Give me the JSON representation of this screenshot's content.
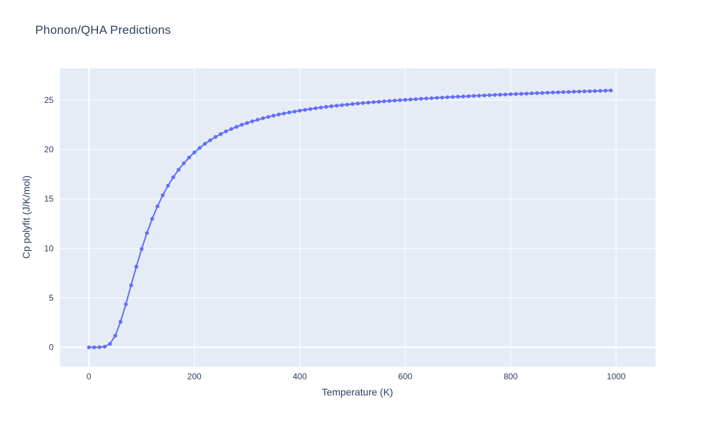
{
  "chart_data": {
    "type": "line",
    "mode": "lines+markers",
    "title": "Phonon/QHA Predictions",
    "xlabel": "Temperature (K)",
    "ylabel": "Cp polyfit (J/K/mol)",
    "series_name": "Cp polyfit",
    "x": [
      0,
      10,
      20,
      30,
      40,
      50,
      60,
      70,
      80,
      90,
      100,
      110,
      120,
      130,
      140,
      150,
      160,
      170,
      180,
      190,
      200,
      210,
      220,
      230,
      240,
      250,
      260,
      270,
      280,
      290,
      300,
      310,
      320,
      330,
      340,
      350,
      360,
      370,
      380,
      390,
      400,
      410,
      420,
      430,
      440,
      450,
      460,
      470,
      480,
      490,
      500,
      510,
      520,
      530,
      540,
      550,
      560,
      570,
      580,
      590,
      600,
      610,
      620,
      630,
      640,
      650,
      660,
      670,
      680,
      690,
      700,
      710,
      720,
      730,
      740,
      750,
      760,
      770,
      780,
      790,
      800,
      810,
      820,
      830,
      840,
      850,
      860,
      870,
      880,
      890,
      900,
      910,
      920,
      930,
      940,
      950,
      960,
      970,
      980,
      990
    ],
    "y": [
      0,
      0,
      0.01,
      0.07,
      0.35,
      1.18,
      2.58,
      4.35,
      6.27,
      8.16,
      9.94,
      11.55,
      12.99,
      14.25,
      15.37,
      16.34,
      17.19,
      17.95,
      18.61,
      19.19,
      19.7,
      20.16,
      20.57,
      20.93,
      21.27,
      21.56,
      21.83,
      22.07,
      22.29,
      22.5,
      22.68,
      22.85,
      23.01,
      23.16,
      23.29,
      23.42,
      23.54,
      23.64,
      23.75,
      23.84,
      23.93,
      24.01,
      24.09,
      24.17,
      24.24,
      24.31,
      24.37,
      24.43,
      24.49,
      24.54,
      24.6,
      24.65,
      24.7,
      24.74,
      24.79,
      24.83,
      24.87,
      24.91,
      24.95,
      24.99,
      25.02,
      25.06,
      25.09,
      25.13,
      25.16,
      25.19,
      25.22,
      25.25,
      25.28,
      25.31,
      25.34,
      25.36,
      25.39,
      25.42,
      25.44,
      25.47,
      25.49,
      25.52,
      25.54,
      25.56,
      25.59,
      25.61,
      25.63,
      25.65,
      25.68,
      25.7,
      25.72,
      25.74,
      25.76,
      25.78,
      25.8,
      25.82,
      25.84,
      25.86,
      25.88,
      25.89,
      25.91,
      25.93,
      25.95,
      25.97
    ],
    "xticks": [
      0,
      200,
      400,
      600,
      800,
      1000
    ],
    "yticks": [
      0,
      5,
      10,
      15,
      20,
      25
    ],
    "x_range": [
      -55,
      1075
    ],
    "y_range": [
      -1.95,
      28.2
    ],
    "grid": true,
    "zeroline": true,
    "legend": "none",
    "colors": {
      "line": "#636efa",
      "marker": "#636efa",
      "plot_bg": "#e5ecf6",
      "grid": "#ffffff",
      "zeroline": "#ffffff",
      "text": "#2a3f5f",
      "paper_bg": "#ffffff"
    }
  }
}
